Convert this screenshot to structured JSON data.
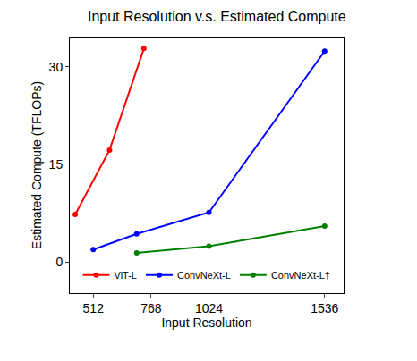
{
  "chart_data": {
    "type": "line",
    "title": "Input Resolution v.s. Estimated Compute",
    "x_label": "Input Resolution",
    "y_label": "Estimated Compute (TFLOPs)",
    "series": [
      {
        "name": "ViT-L",
        "color": "#ff0000",
        "x": [
          432,
          584,
          736
        ],
        "values": [
          7.3,
          17.2,
          32.8
        ]
      },
      {
        "name": "ConvNeXt-L",
        "color": "#0000ff",
        "x": [
          512,
          704,
          1024,
          1536
        ],
        "values": [
          1.9,
          4.3,
          7.6,
          32.4
        ]
      },
      {
        "name": "ConvNeXt-L†",
        "color": "#008000",
        "x": [
          704,
          1024,
          1536
        ],
        "values": [
          1.4,
          2.4,
          5.5
        ]
      }
    ],
    "xlim": [
      408,
      1620
    ],
    "xticks": [
      512,
      768,
      1024,
      1536
    ],
    "ylim": [
      -4.8,
      34.5
    ],
    "yticks": [
      0,
      15,
      30
    ],
    "grid": false,
    "legend": "bottom",
    "marker": "circle"
  }
}
